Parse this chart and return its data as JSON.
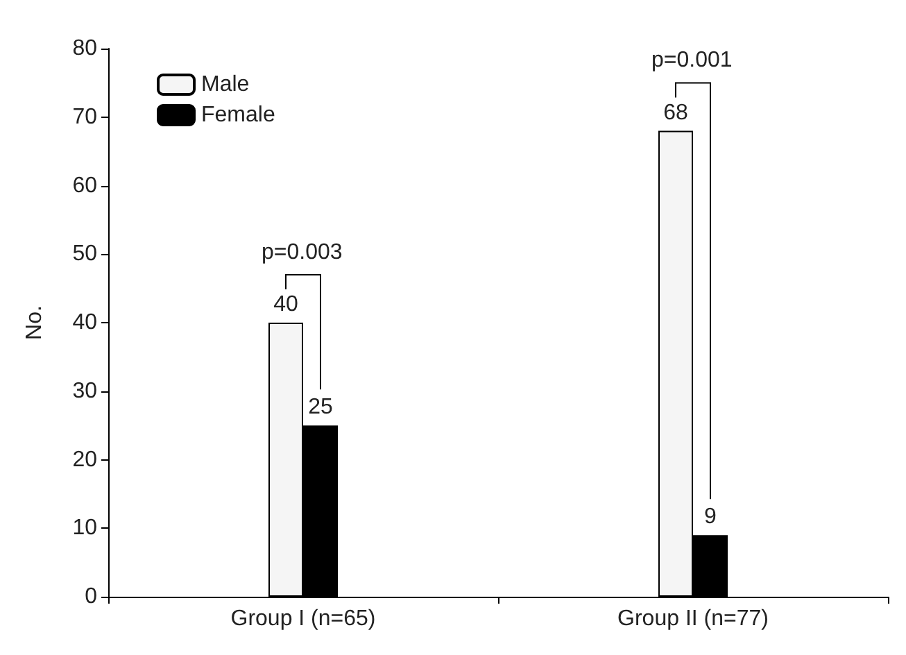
{
  "chart_data": {
    "type": "bar",
    "ylabel": "No.",
    "categories": [
      "Group I (n=65)",
      "Group II (n=77)"
    ],
    "series": [
      {
        "name": "Male",
        "color": "#f5f5f5",
        "values": [
          40,
          68
        ]
      },
      {
        "name": "Female",
        "color": "#000000",
        "values": [
          25,
          9
        ]
      }
    ],
    "ylim": [
      0,
      80
    ],
    "yticks": [
      0,
      10,
      20,
      30,
      40,
      50,
      60,
      70,
      80
    ],
    "grid": false,
    "legend": "top left",
    "data_labels": true,
    "annotations": [
      "p=0.003",
      "p=0.001"
    ]
  }
}
